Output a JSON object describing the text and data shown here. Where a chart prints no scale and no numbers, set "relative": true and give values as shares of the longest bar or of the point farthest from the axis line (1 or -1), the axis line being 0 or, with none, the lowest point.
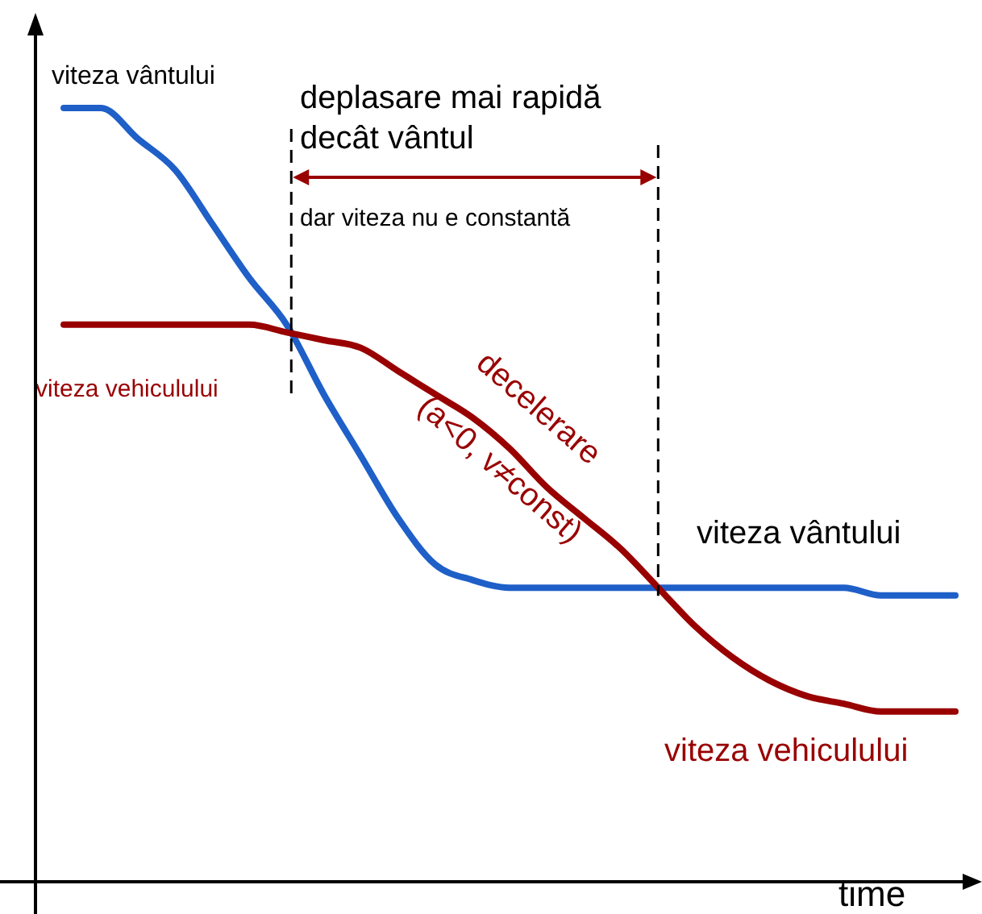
{
  "chart_data": {
    "type": "line",
    "relative": true,
    "xlabel": "time",
    "categories": [
      null,
      null,
      null,
      null,
      null,
      null,
      null,
      null,
      null,
      null,
      null,
      null,
      null,
      null,
      null,
      null,
      null,
      null,
      null,
      null,
      null,
      null,
      null,
      null,
      null
    ],
    "series": [
      {
        "name": "viteza vântului",
        "color": "#1f5fc8",
        "values": [
          1,
          1,
          0.96,
          0.92,
          0.85,
          0.78,
          0.72,
          0.63,
          0.55,
          0.47,
          0.41,
          0.39,
          0.38,
          0.38,
          0.38,
          0.38,
          0.38,
          0.38,
          0.38,
          0.38,
          0.38,
          0.38,
          0.37,
          0.37,
          0.37
        ]
      },
      {
        "name": "viteza vehiculului",
        "color": "#990000",
        "values": [
          0.72,
          0.72,
          0.72,
          0.72,
          0.72,
          0.72,
          0.71,
          0.7,
          0.69,
          0.66,
          0.63,
          0.6,
          0.56,
          0.51,
          0.47,
          0.43,
          0.38,
          0.33,
          0.29,
          0.26,
          0.24,
          0.23,
          0.22,
          0.22,
          0.22
        ]
      }
    ],
    "annotations": [
      "deplasare mai rapidă",
      "decât vântul",
      "dar viteza nu e constantă",
      "decelerare",
      "(a<0, v≠const)",
      "viteza vântului",
      "viteza vehiculului"
    ],
    "grid": false,
    "legend": false,
    "marker": "none",
    "line_style": "solid"
  }
}
